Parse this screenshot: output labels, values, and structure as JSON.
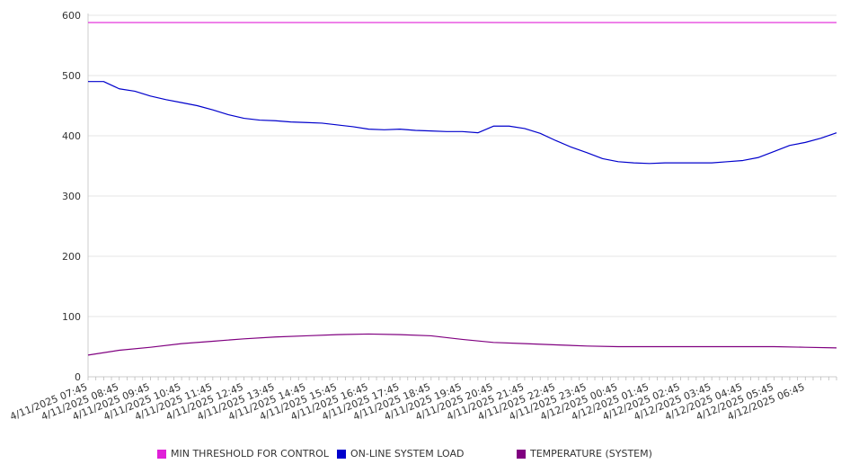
{
  "chart_data": {
    "type": "line",
    "title": "",
    "xlabel": "",
    "ylabel": "",
    "ylim": [
      0,
      600
    ],
    "y_ticks": [
      0,
      100,
      200,
      300,
      400,
      500,
      600
    ],
    "x_tick_labels": [
      "4/11/2025 07:45",
      "4/11/2025 08:45",
      "4/11/2025 09:45",
      "4/11/2025 10:45",
      "4/11/2025 11:45",
      "4/11/2025 12:45",
      "4/11/2025 13:45",
      "4/11/2025 14:45",
      "4/11/2025 15:45",
      "4/11/2025 16:45",
      "4/11/2025 17:45",
      "4/11/2025 18:45",
      "4/11/2025 19:45",
      "4/11/2025 20:45",
      "4/11/2025 21:45",
      "4/11/2025 22:45",
      "4/11/2025 23:45",
      "4/12/2025 00:45",
      "4/12/2025 01:45",
      "4/12/2025 02:45",
      "4/12/2025 03:45",
      "4/12/2025 04:45",
      "4/12/2025 05:45",
      "4/12/2025 06:45"
    ],
    "x_start": "4/11/2025 07:45",
    "x_end": "4/12/2025 07:45",
    "grid": true,
    "legend_position": "bottom",
    "series": [
      {
        "name": "MIN THRESHOLD FOR CONTROL",
        "color": "#e020d8",
        "x": [
          "4/11/2025 07:45",
          "4/12/2025 07:45"
        ],
        "values": [
          588,
          588
        ]
      },
      {
        "name": "ON-LINE SYSTEM LOAD",
        "color": "#0000cc",
        "x": [
          "4/11/2025 07:45",
          "4/11/2025 08:15",
          "4/11/2025 08:45",
          "4/11/2025 09:15",
          "4/11/2025 09:45",
          "4/11/2025 10:15",
          "4/11/2025 10:45",
          "4/11/2025 11:15",
          "4/11/2025 11:45",
          "4/11/2025 12:15",
          "4/11/2025 12:45",
          "4/11/2025 13:15",
          "4/11/2025 13:45",
          "4/11/2025 14:15",
          "4/11/2025 14:45",
          "4/11/2025 15:15",
          "4/11/2025 15:45",
          "4/11/2025 16:15",
          "4/11/2025 16:45",
          "4/11/2025 17:15",
          "4/11/2025 17:45",
          "4/11/2025 18:15",
          "4/11/2025 18:45",
          "4/11/2025 19:15",
          "4/11/2025 19:45",
          "4/11/2025 20:15",
          "4/11/2025 20:45",
          "4/11/2025 21:15",
          "4/11/2025 21:45",
          "4/11/2025 22:15",
          "4/11/2025 22:45",
          "4/11/2025 23:15",
          "4/11/2025 23:45",
          "4/12/2025 00:15",
          "4/12/2025 00:45",
          "4/12/2025 01:15",
          "4/12/2025 01:45",
          "4/12/2025 02:15",
          "4/12/2025 02:45",
          "4/12/2025 03:15",
          "4/12/2025 03:45",
          "4/12/2025 04:15",
          "4/12/2025 04:45",
          "4/12/2025 05:15",
          "4/12/2025 05:45",
          "4/12/2025 06:15",
          "4/12/2025 06:45",
          "4/12/2025 07:15",
          "4/12/2025 07:45"
        ],
        "values": [
          490,
          490,
          478,
          474,
          466,
          460,
          455,
          450,
          443,
          435,
          429,
          426,
          425,
          423,
          422,
          421,
          418,
          415,
          411,
          410,
          411,
          409,
          408,
          407,
          407,
          405,
          416,
          416,
          412,
          404,
          392,
          381,
          372,
          362,
          357,
          355,
          354,
          355,
          355,
          355,
          355,
          357,
          359,
          364,
          374,
          384,
          389,
          396,
          405
        ]
      },
      {
        "name": "TEMPERATURE (SYSTEM)",
        "color": "#800080",
        "x": [
          "4/11/2025 07:45",
          "4/11/2025 08:45",
          "4/11/2025 09:45",
          "4/11/2025 10:45",
          "4/11/2025 11:45",
          "4/11/2025 12:45",
          "4/11/2025 13:45",
          "4/11/2025 14:45",
          "4/11/2025 15:45",
          "4/11/2025 16:45",
          "4/11/2025 17:45",
          "4/11/2025 18:45",
          "4/11/2025 19:45",
          "4/11/2025 20:45",
          "4/11/2025 21:45",
          "4/11/2025 22:45",
          "4/11/2025 23:45",
          "4/12/2025 00:45",
          "4/12/2025 01:45",
          "4/12/2025 02:45",
          "4/12/2025 03:45",
          "4/12/2025 04:45",
          "4/12/2025 05:45",
          "4/12/2025 06:45",
          "4/12/2025 07:45"
        ],
        "values": [
          36,
          44,
          49,
          55,
          59,
          63,
          66,
          68,
          70,
          71,
          70,
          68,
          62,
          57,
          55,
          53,
          51,
          50,
          50,
          50,
          50,
          50,
          50,
          49,
          48
        ]
      }
    ]
  }
}
